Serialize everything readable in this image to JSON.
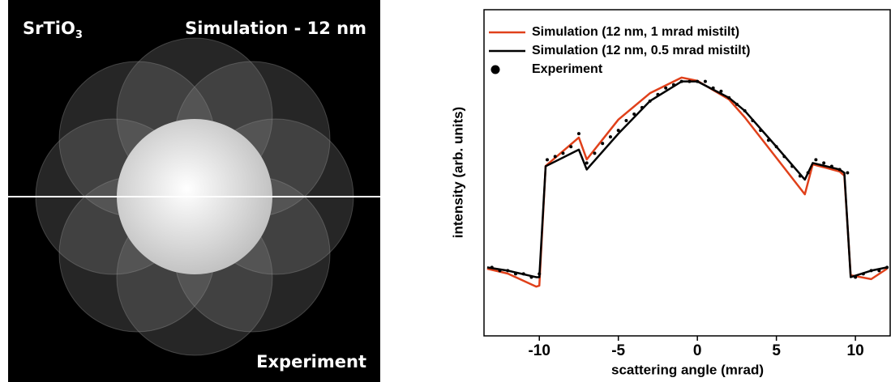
{
  "image_panel": {
    "label": "SrTiO",
    "label_subscript": "3",
    "title": "Simulation - 12 nm",
    "footer": "Experiment"
  },
  "chart_data": {
    "type": "line",
    "xlabel": "scattering angle (mrad)",
    "ylabel": "intensity (arb. units)",
    "xlim": [
      -13.5,
      12.2
    ],
    "ylim": [
      0,
      1
    ],
    "xticks": [
      -10,
      -5,
      0,
      5,
      10
    ],
    "legend": "top-left",
    "series": [
      {
        "name": "Simulation (12 nm, 1 mrad mistilt)",
        "color": "#e0401a",
        "mode": "line",
        "x": [
          -13.3,
          -12,
          -10.2,
          -10,
          -9.6,
          -7.5,
          -7,
          -5,
          -3,
          -1,
          0,
          2,
          3,
          5,
          6.8,
          7.3,
          9,
          9.3,
          9.7,
          11,
          12
        ],
        "values": [
          0.206,
          0.191,
          0.151,
          0.154,
          0.521,
          0.608,
          0.541,
          0.663,
          0.744,
          0.792,
          0.782,
          0.725,
          0.67,
          0.546,
          0.434,
          0.526,
          0.504,
          0.491,
          0.186,
          0.174,
          0.206
        ]
      },
      {
        "name": "Simulation (12 nm, 0.5 mrad mistilt)",
        "color": "#000000",
        "mode": "line",
        "x": [
          -13.3,
          -12,
          -10.2,
          -10,
          -9.6,
          -7.5,
          -7,
          -5,
          -3,
          -1,
          0,
          2,
          3,
          5,
          6.8,
          7.3,
          9,
          9.3,
          9.7,
          11,
          12
        ],
        "values": [
          0.21,
          0.2,
          0.18,
          0.18,
          0.52,
          0.571,
          0.51,
          0.62,
          0.72,
          0.78,
          0.78,
          0.73,
          0.69,
          0.58,
          0.479,
          0.53,
          0.51,
          0.5,
          0.18,
          0.2,
          0.21
        ]
      },
      {
        "name": "Experiment",
        "color": "#000000",
        "mode": "markers",
        "x": [
          -13,
          -12.5,
          -12,
          -11.5,
          -11,
          -10.5,
          -10,
          -9.5,
          -9,
          -8.5,
          -8,
          -7.5,
          -7,
          -6.5,
          -6,
          -5.5,
          -5,
          -4.5,
          -4,
          -3.5,
          -3,
          -2.5,
          -2,
          -1.5,
          -1,
          -0.5,
          0,
          0.5,
          1,
          1.5,
          2,
          2.5,
          3,
          3.5,
          4,
          4.5,
          5,
          5.5,
          6,
          6.5,
          7,
          7.5,
          8,
          8.5,
          9,
          9.5,
          10,
          10.5,
          11,
          11.5,
          12
        ],
        "values": [
          0.21,
          0.2,
          0.2,
          0.19,
          0.19,
          0.18,
          0.19,
          0.54,
          0.55,
          0.56,
          0.58,
          0.62,
          0.53,
          0.56,
          0.59,
          0.61,
          0.63,
          0.66,
          0.68,
          0.7,
          0.72,
          0.74,
          0.76,
          0.77,
          0.78,
          0.78,
          0.78,
          0.78,
          0.76,
          0.75,
          0.73,
          0.71,
          0.69,
          0.66,
          0.63,
          0.6,
          0.58,
          0.55,
          0.52,
          0.49,
          0.5,
          0.54,
          0.53,
          0.52,
          0.51,
          0.5,
          0.18,
          0.19,
          0.2,
          0.2,
          0.21
        ]
      }
    ]
  }
}
